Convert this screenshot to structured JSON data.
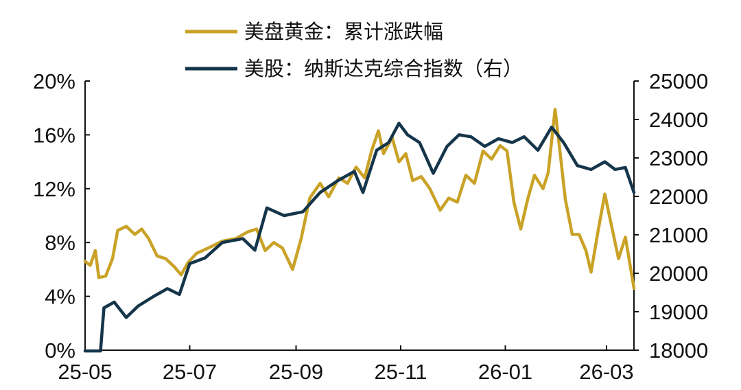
{
  "chart_data": {
    "type": "line",
    "legend_position": "top-center",
    "grid": false,
    "x_axis": {
      "ticks": [
        "25-05",
        "25-07",
        "25-09",
        "25-11",
        "26-01",
        "26-03"
      ],
      "tick_dates": [
        "2025-05-01",
        "2025-07-01",
        "2025-09-01",
        "2025-11-01",
        "2026-01-01",
        "2026-03-01"
      ],
      "range": [
        "2025-05-01",
        "2026-03-17"
      ]
    },
    "y_left": {
      "label": "",
      "range": [
        0,
        20
      ],
      "ticks": [
        "0%",
        "4%",
        "8%",
        "12%",
        "16%",
        "20%"
      ]
    },
    "y_right": {
      "label": "",
      "range": [
        18000,
        25000
      ],
      "ticks": [
        "18000",
        "19000",
        "20000",
        "21000",
        "22000",
        "23000",
        "24000",
        "25000"
      ]
    },
    "series": [
      {
        "name": "美盘黄金：累计涨跌幅",
        "axis": "left",
        "unit": "%",
        "color": "#C9A227",
        "points": [
          [
            "2025-05-01",
            6.6
          ],
          [
            "2025-05-04",
            6.3
          ],
          [
            "2025-05-07",
            7.4
          ],
          [
            "2025-05-09",
            5.4
          ],
          [
            "2025-05-13",
            5.5
          ],
          [
            "2025-05-17",
            6.8
          ],
          [
            "2025-05-20",
            8.9
          ],
          [
            "2025-05-25",
            9.2
          ],
          [
            "2025-05-30",
            8.6
          ],
          [
            "2025-06-03",
            9.0
          ],
          [
            "2025-06-07",
            8.3
          ],
          [
            "2025-06-12",
            7.0
          ],
          [
            "2025-06-17",
            6.8
          ],
          [
            "2025-06-22",
            6.2
          ],
          [
            "2025-06-26",
            5.6
          ],
          [
            "2025-06-30",
            6.5
          ],
          [
            "2025-07-05",
            7.2
          ],
          [
            "2025-07-12",
            7.6
          ],
          [
            "2025-07-20",
            8.1
          ],
          [
            "2025-07-28",
            8.3
          ],
          [
            "2025-08-04",
            8.8
          ],
          [
            "2025-08-09",
            9.0
          ],
          [
            "2025-08-14",
            7.4
          ],
          [
            "2025-08-19",
            8.0
          ],
          [
            "2025-08-24",
            7.6
          ],
          [
            "2025-08-30",
            6.0
          ],
          [
            "2025-09-04",
            8.3
          ],
          [
            "2025-09-09",
            11.3
          ],
          [
            "2025-09-15",
            12.4
          ],
          [
            "2025-09-20",
            11.4
          ],
          [
            "2025-09-26",
            12.8
          ],
          [
            "2025-10-01",
            12.4
          ],
          [
            "2025-10-06",
            13.6
          ],
          [
            "2025-10-11",
            12.8
          ],
          [
            "2025-10-15",
            14.8
          ],
          [
            "2025-10-19",
            16.3
          ],
          [
            "2025-10-22",
            14.6
          ],
          [
            "2025-10-27",
            15.8
          ],
          [
            "2025-10-31",
            14.0
          ],
          [
            "2025-11-04",
            14.6
          ],
          [
            "2025-11-08",
            12.6
          ],
          [
            "2025-11-13",
            12.9
          ],
          [
            "2025-11-18",
            12.0
          ],
          [
            "2025-11-24",
            10.4
          ],
          [
            "2025-11-29",
            11.3
          ],
          [
            "2025-12-04",
            11.0
          ],
          [
            "2025-12-09",
            13.0
          ],
          [
            "2025-12-14",
            12.4
          ],
          [
            "2025-12-19",
            14.8
          ],
          [
            "2025-12-24",
            14.2
          ],
          [
            "2025-12-29",
            15.2
          ],
          [
            "2026-01-02",
            14.8
          ],
          [
            "2026-01-06",
            11.0
          ],
          [
            "2026-01-10",
            9.0
          ],
          [
            "2026-01-14",
            11.2
          ],
          [
            "2026-01-18",
            13.0
          ],
          [
            "2026-01-23",
            12.0
          ],
          [
            "2026-01-26",
            13.2
          ],
          [
            "2026-01-30",
            17.9
          ],
          [
            "2026-02-02",
            14.6
          ],
          [
            "2026-02-05",
            11.2
          ],
          [
            "2026-02-09",
            8.6
          ],
          [
            "2026-02-13",
            8.6
          ],
          [
            "2026-02-17",
            7.4
          ],
          [
            "2026-02-20",
            5.8
          ],
          [
            "2026-02-24",
            8.8
          ],
          [
            "2026-02-28",
            11.6
          ],
          [
            "2026-03-04",
            9.2
          ],
          [
            "2026-03-08",
            6.8
          ],
          [
            "2026-03-12",
            8.4
          ],
          [
            "2026-03-17",
            4.6
          ]
        ]
      },
      {
        "name": "美股：纳斯达克综合指数（右）",
        "axis": "right",
        "unit": "",
        "color": "#15354A",
        "points": [
          [
            "2025-05-01",
            17980
          ],
          [
            "2025-05-08",
            17980
          ],
          [
            "2025-05-10",
            17980
          ],
          [
            "2025-05-12",
            19100
          ],
          [
            "2025-05-18",
            19250
          ],
          [
            "2025-05-25",
            18850
          ],
          [
            "2025-06-01",
            19150
          ],
          [
            "2025-06-10",
            19400
          ],
          [
            "2025-06-18",
            19600
          ],
          [
            "2025-06-25",
            19450
          ],
          [
            "2025-07-01",
            20250
          ],
          [
            "2025-07-10",
            20400
          ],
          [
            "2025-07-20",
            20800
          ],
          [
            "2025-08-01",
            20900
          ],
          [
            "2025-08-08",
            20600
          ],
          [
            "2025-08-15",
            21700
          ],
          [
            "2025-08-25",
            21500
          ],
          [
            "2025-09-05",
            21600
          ],
          [
            "2025-09-15",
            22100
          ],
          [
            "2025-09-25",
            22400
          ],
          [
            "2025-10-05",
            22650
          ],
          [
            "2025-10-10",
            22100
          ],
          [
            "2025-10-18",
            23200
          ],
          [
            "2025-10-25",
            23400
          ],
          [
            "2025-10-31",
            23900
          ],
          [
            "2025-11-05",
            23600
          ],
          [
            "2025-11-12",
            23400
          ],
          [
            "2025-11-20",
            22600
          ],
          [
            "2025-11-28",
            23300
          ],
          [
            "2025-12-05",
            23600
          ],
          [
            "2025-12-12",
            23550
          ],
          [
            "2025-12-20",
            23300
          ],
          [
            "2025-12-28",
            23500
          ],
          [
            "2026-01-05",
            23400
          ],
          [
            "2026-01-12",
            23550
          ],
          [
            "2026-01-20",
            23200
          ],
          [
            "2026-01-28",
            23800
          ],
          [
            "2026-02-04",
            23400
          ],
          [
            "2026-02-12",
            22800
          ],
          [
            "2026-02-20",
            22700
          ],
          [
            "2026-02-28",
            22900
          ],
          [
            "2026-03-06",
            22700
          ],
          [
            "2026-03-12",
            22750
          ],
          [
            "2026-03-17",
            22100
          ]
        ]
      }
    ]
  }
}
